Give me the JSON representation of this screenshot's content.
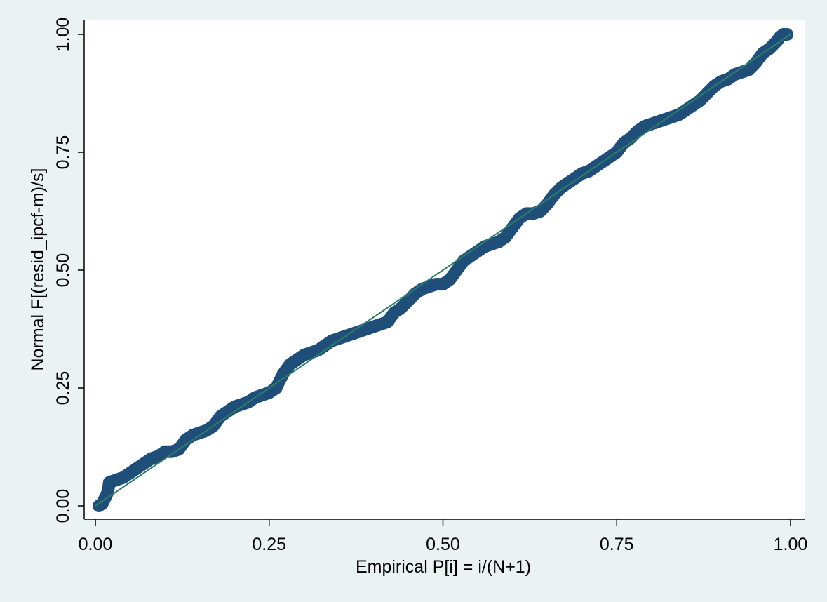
{
  "chart_data": {
    "type": "scatter",
    "title": "",
    "xlabel": "Empirical P[i] = i/(N+1)",
    "ylabel": "Normal F[(resid_ipcf-m)/s]",
    "xlim": [
      0,
      1
    ],
    "ylim": [
      0,
      1
    ],
    "x_ticks": [
      "0.00",
      "0.25",
      "0.50",
      "0.75",
      "1.00"
    ],
    "y_ticks": [
      "0.00",
      "0.25",
      "0.50",
      "0.75",
      "1.00"
    ],
    "grid": false,
    "legend": "none",
    "reference_line": {
      "from": [
        0,
        0
      ],
      "to": [
        1,
        1
      ],
      "color": "#2e7d6b"
    },
    "colors": {
      "background": "#eaf2f3",
      "plot_area": "#ffffff",
      "markers": "#1f4e79",
      "reference_line": "#2e7d6b"
    },
    "series": [
      {
        "points_xy": [
          [
            0.005,
            0.0
          ],
          [
            0.01,
            0.005
          ],
          [
            0.015,
            0.02
          ],
          [
            0.018,
            0.03
          ],
          [
            0.02,
            0.05
          ],
          [
            0.03,
            0.055
          ],
          [
            0.04,
            0.06
          ],
          [
            0.05,
            0.07
          ],
          [
            0.06,
            0.08
          ],
          [
            0.07,
            0.09
          ],
          [
            0.08,
            0.1
          ],
          [
            0.09,
            0.105
          ],
          [
            0.1,
            0.115
          ],
          [
            0.11,
            0.115
          ],
          [
            0.12,
            0.12
          ],
          [
            0.13,
            0.14
          ],
          [
            0.14,
            0.15
          ],
          [
            0.15,
            0.155
          ],
          [
            0.16,
            0.16
          ],
          [
            0.17,
            0.17
          ],
          [
            0.18,
            0.19
          ],
          [
            0.19,
            0.2
          ],
          [
            0.2,
            0.21
          ],
          [
            0.21,
            0.215
          ],
          [
            0.22,
            0.22
          ],
          [
            0.23,
            0.23
          ],
          [
            0.24,
            0.235
          ],
          [
            0.25,
            0.24
          ],
          [
            0.26,
            0.25
          ],
          [
            0.27,
            0.28
          ],
          [
            0.28,
            0.3
          ],
          [
            0.29,
            0.31
          ],
          [
            0.3,
            0.32
          ],
          [
            0.31,
            0.325
          ],
          [
            0.32,
            0.33
          ],
          [
            0.33,
            0.34
          ],
          [
            0.34,
            0.35
          ],
          [
            0.35,
            0.355
          ],
          [
            0.36,
            0.36
          ],
          [
            0.37,
            0.365
          ],
          [
            0.38,
            0.37
          ],
          [
            0.39,
            0.375
          ],
          [
            0.4,
            0.38
          ],
          [
            0.41,
            0.385
          ],
          [
            0.42,
            0.39
          ],
          [
            0.43,
            0.41
          ],
          [
            0.44,
            0.42
          ],
          [
            0.45,
            0.435
          ],
          [
            0.46,
            0.45
          ],
          [
            0.47,
            0.46
          ],
          [
            0.48,
            0.465
          ],
          [
            0.49,
            0.47
          ],
          [
            0.5,
            0.47
          ],
          [
            0.51,
            0.48
          ],
          [
            0.52,
            0.5
          ],
          [
            0.53,
            0.52
          ],
          [
            0.54,
            0.53
          ],
          [
            0.55,
            0.54
          ],
          [
            0.56,
            0.55
          ],
          [
            0.57,
            0.555
          ],
          [
            0.58,
            0.56
          ],
          [
            0.59,
            0.57
          ],
          [
            0.6,
            0.59
          ],
          [
            0.61,
            0.61
          ],
          [
            0.62,
            0.62
          ],
          [
            0.63,
            0.62
          ],
          [
            0.64,
            0.625
          ],
          [
            0.65,
            0.64
          ],
          [
            0.66,
            0.66
          ],
          [
            0.67,
            0.675
          ],
          [
            0.68,
            0.685
          ],
          [
            0.69,
            0.695
          ],
          [
            0.7,
            0.705
          ],
          [
            0.71,
            0.71
          ],
          [
            0.72,
            0.72
          ],
          [
            0.73,
            0.73
          ],
          [
            0.74,
            0.74
          ],
          [
            0.75,
            0.75
          ],
          [
            0.76,
            0.77
          ],
          [
            0.77,
            0.78
          ],
          [
            0.78,
            0.795
          ],
          [
            0.79,
            0.805
          ],
          [
            0.8,
            0.81
          ],
          [
            0.81,
            0.815
          ],
          [
            0.82,
            0.82
          ],
          [
            0.83,
            0.825
          ],
          [
            0.84,
            0.83
          ],
          [
            0.85,
            0.84
          ],
          [
            0.86,
            0.85
          ],
          [
            0.87,
            0.86
          ],
          [
            0.88,
            0.875
          ],
          [
            0.89,
            0.89
          ],
          [
            0.9,
            0.9
          ],
          [
            0.91,
            0.905
          ],
          [
            0.92,
            0.915
          ],
          [
            0.93,
            0.92
          ],
          [
            0.94,
            0.925
          ],
          [
            0.95,
            0.94
          ],
          [
            0.96,
            0.96
          ],
          [
            0.97,
            0.97
          ],
          [
            0.98,
            0.985
          ],
          [
            0.985,
            0.995
          ],
          [
            0.99,
            1.0
          ],
          [
            0.995,
            1.0
          ]
        ]
      }
    ]
  }
}
